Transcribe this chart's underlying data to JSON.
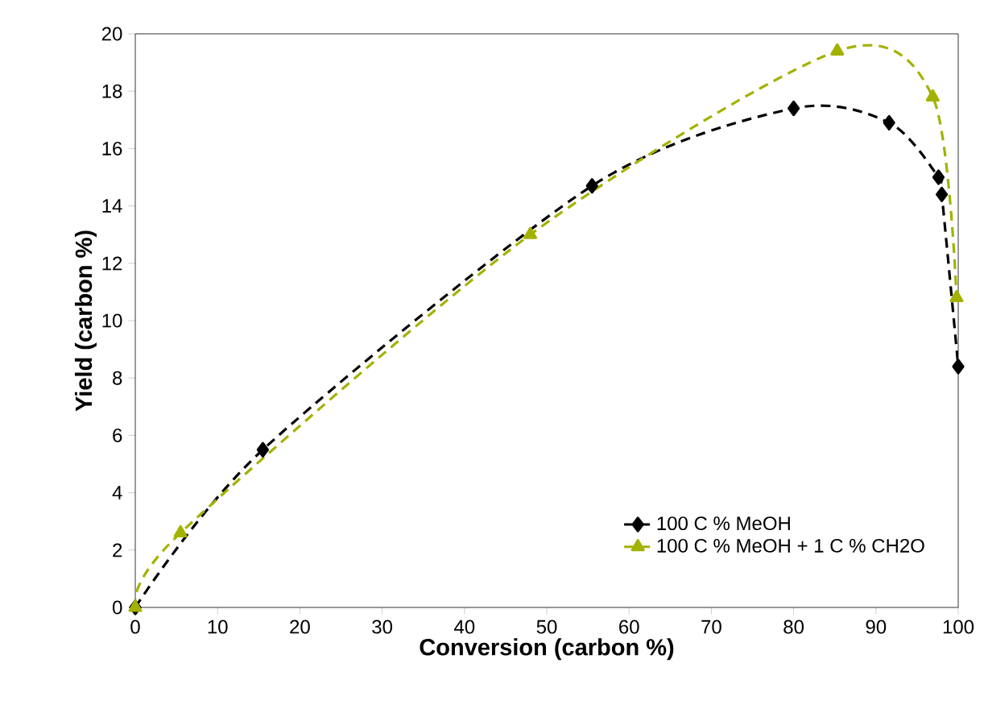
{
  "chart_data": {
    "type": "line",
    "xlabel": "Conversion (carbon %)",
    "ylabel": "Yield (carbon %)",
    "series": [
      {
        "name": "100 C % MeOH",
        "color": "#000000",
        "marker": "diamond",
        "x": [
          0,
          15.5,
          55.5,
          80.0,
          91.6,
          97.6,
          98.0,
          100
        ],
        "values": [
          0,
          5.5,
          14.7,
          17.4,
          16.9,
          15.0,
          14.4,
          8.4
        ]
      },
      {
        "name": "100 C % MeOH + 1 C % CH2O",
        "color": "#a3b200",
        "marker": "triangle",
        "x": [
          0,
          5.5,
          48.0,
          85.3,
          96.9,
          99.8
        ],
        "values": [
          0,
          2.6,
          13.0,
          19.4,
          17.8,
          10.8
        ]
      }
    ],
    "line_style": "dashed",
    "legend": "bottom right",
    "grid": false,
    "xlim": [
      0,
      100
    ],
    "xticks": [
      0,
      10,
      20,
      30,
      40,
      50,
      60,
      70,
      80,
      90,
      100
    ],
    "ylim": [
      0,
      20
    ],
    "yticks": [
      0,
      2,
      4,
      6,
      8,
      10,
      12,
      14,
      16,
      18,
      20
    ]
  }
}
